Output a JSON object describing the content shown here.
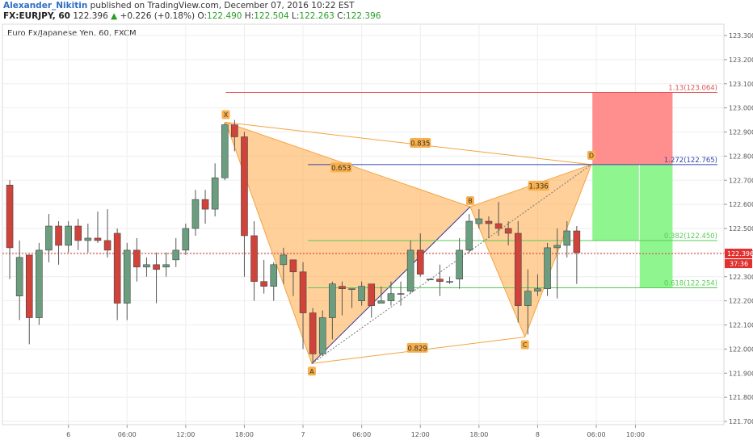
{
  "header": {
    "author": "Alexander_Nikitin",
    "published": "published on TradingView.com, December 07, 2016 10:22 EST",
    "symbol": "FX:EURJPY, 60",
    "last": "122.396",
    "arrow": "▲",
    "change": "+0.226 (+0.18%)",
    "o_label": "O:",
    "o_val": "122.490",
    "h_label": "H:",
    "h_val": "122.504",
    "l_label": "L:",
    "l_val": "122.263",
    "c_label": "C:",
    "c_val": "122.396"
  },
  "chart_data": {
    "type": "candlestick",
    "title": "Euro Fx/Japanese Yen, 60, FXCM",
    "ylim": [
      121.65,
      123.35
    ],
    "y_ticks": [
      123.3,
      123.2,
      123.1,
      123.0,
      122.9,
      122.8,
      122.7,
      122.6,
      122.5,
      122.4,
      122.3,
      122.2,
      122.1,
      122.0,
      121.9,
      121.8,
      121.7
    ],
    "x_ticks": [
      {
        "label": "6",
        "bar": 6.5
      },
      {
        "label": "06:00",
        "bar": 12.5
      },
      {
        "label": "12:00",
        "bar": 18.5
      },
      {
        "label": "18:00",
        "bar": 24.5
      },
      {
        "label": "7",
        "bar": 30.5
      },
      {
        "label": "06:00",
        "bar": 36.5
      },
      {
        "label": "12:00",
        "bar": 42.5
      },
      {
        "label": "18:00",
        "bar": 48.5
      },
      {
        "label": "8",
        "bar": 54.5
      },
      {
        "label": "06:00",
        "bar": 60.5
      },
      {
        "label": "10:00",
        "bar": 64.5
      }
    ],
    "total_bars": 66,
    "up_color": "#6a9e7f",
    "down_color": "#d0433a",
    "candles": [
      [
        122.68,
        122.42,
        122.7,
        122.29
      ],
      [
        122.22,
        122.38,
        122.45,
        122.12
      ],
      [
        122.39,
        122.13,
        122.39,
        122.02
      ],
      [
        122.13,
        122.41,
        122.44,
        122.1
      ],
      [
        122.41,
        122.51,
        122.56,
        122.36
      ],
      [
        122.51,
        122.43,
        122.53,
        122.35
      ],
      [
        122.43,
        122.51,
        122.53,
        122.4
      ],
      [
        122.51,
        122.45,
        122.54,
        122.41
      ],
      [
        122.45,
        122.46,
        122.52,
        122.4
      ],
      [
        122.46,
        122.45,
        122.57,
        122.44
      ],
      [
        122.45,
        122.41,
        122.58,
        122.38
      ],
      [
        122.48,
        122.19,
        122.5,
        122.12
      ],
      [
        122.19,
        122.41,
        122.44,
        122.12
      ],
      [
        122.41,
        122.34,
        122.46,
        122.28
      ],
      [
        122.34,
        122.35,
        122.38,
        122.3
      ],
      [
        122.35,
        122.33,
        122.4,
        122.19
      ],
      [
        122.34,
        122.35,
        122.4,
        122.3
      ],
      [
        122.37,
        122.41,
        122.46,
        122.34
      ],
      [
        122.41,
        122.5,
        122.52,
        122.39
      ],
      [
        122.5,
        122.62,
        122.66,
        122.47
      ],
      [
        122.62,
        122.58,
        122.66,
        122.52
      ],
      [
        122.58,
        122.71,
        122.77,
        122.55
      ],
      [
        122.71,
        122.93,
        122.94,
        122.7
      ],
      [
        122.93,
        122.88,
        122.95,
        122.82
      ],
      [
        122.88,
        122.47,
        122.9,
        122.3
      ],
      [
        122.47,
        122.28,
        122.53,
        122.2
      ],
      [
        122.28,
        122.26,
        122.37,
        122.23
      ],
      [
        122.26,
        122.35,
        122.36,
        122.2
      ],
      [
        122.35,
        122.39,
        122.42,
        122.27
      ],
      [
        122.37,
        122.32,
        122.37,
        122.22
      ],
      [
        122.32,
        122.15,
        122.36,
        122.0
      ],
      [
        122.15,
        121.98,
        122.17,
        121.94
      ],
      [
        121.98,
        122.13,
        122.16,
        121.97
      ],
      [
        122.13,
        122.27,
        122.28,
        122.04
      ],
      [
        122.26,
        122.25,
        122.28,
        122.14
      ],
      [
        122.25,
        122.25,
        122.25,
        122.17
      ],
      [
        122.2,
        122.26,
        122.28,
        122.18
      ],
      [
        122.27,
        122.18,
        122.27,
        122.13
      ],
      [
        122.19,
        122.2,
        122.26,
        122.2
      ],
      [
        122.2,
        122.23,
        122.28,
        122.18
      ],
      [
        122.23,
        122.23,
        122.28,
        122.18
      ],
      [
        122.24,
        122.41,
        122.45,
        122.23
      ],
      [
        122.41,
        122.31,
        122.48,
        122.3
      ],
      [
        122.29,
        122.29,
        122.29,
        122.29
      ],
      [
        122.29,
        122.28,
        122.35,
        122.22
      ],
      [
        122.28,
        122.28,
        122.3,
        122.27
      ],
      [
        122.29,
        122.41,
        122.46,
        122.25
      ],
      [
        122.41,
        122.53,
        122.56,
        122.4
      ],
      [
        122.52,
        122.54,
        122.58,
        122.5
      ],
      [
        122.53,
        122.52,
        122.55,
        122.46
      ],
      [
        122.52,
        122.5,
        122.61,
        122.47
      ],
      [
        122.5,
        122.48,
        122.53,
        122.43
      ],
      [
        122.48,
        122.18,
        122.53,
        122.11
      ],
      [
        122.18,
        122.24,
        122.33,
        122.06
      ],
      [
        122.24,
        122.25,
        122.31,
        122.22
      ],
      [
        122.25,
        122.42,
        122.44,
        122.22
      ],
      [
        122.42,
        122.43,
        122.5,
        122.21
      ],
      [
        122.43,
        122.49,
        122.53,
        122.38
      ],
      [
        122.49,
        122.4,
        122.51,
        122.27
      ]
    ],
    "pattern_points": {
      "X": {
        "bar": 22.6,
        "price": 122.94
      },
      "A": {
        "bar": 31.4,
        "price": 121.94
      },
      "B": {
        "bar": 47.6,
        "price": 122.59
      },
      "C": {
        "bar": 53.2,
        "price": 122.05
      },
      "D": {
        "bar": 60.0,
        "price": 122.765
      }
    },
    "point_labels": [
      "X",
      "A",
      "B",
      "C",
      "D"
    ],
    "ratios": [
      {
        "label": "0.835",
        "bar": 42.5,
        "price": 122.855
      },
      {
        "label": "0.653",
        "bar": 34.4,
        "price": 122.753
      },
      {
        "label": "1.336",
        "bar": 54.6,
        "price": 122.677
      },
      {
        "label": "0.829",
        "bar": 42.2,
        "price": 122.005
      }
    ],
    "levels": [
      {
        "label": "1.13(123.064)",
        "price": 123.064,
        "start_bar": 22.6,
        "color": "#e05555"
      },
      {
        "label": "1.272(122.765)",
        "price": 122.765,
        "start_bar": 31.0,
        "color": "#3344aa"
      },
      {
        "label": "0.382(122.450)",
        "price": 122.45,
        "start_bar": 31.0,
        "color": "#55cc55"
      },
      {
        "label": "0.618(122.254)",
        "price": 122.254,
        "start_bar": 31.0,
        "color": "#55cc55"
      }
    ],
    "stop_zone": {
      "bar_start": 60.1,
      "bar_end": 68.3,
      "price_low": 122.765,
      "price_high": 123.064
    },
    "target_zone_1": {
      "bar_start": 60.1,
      "bar_end": 68.3,
      "price_low": 122.45,
      "price_high": 122.765
    },
    "target_zone_2": {
      "bar_start": 64.9,
      "bar_end": 68.3,
      "price_low": 122.254,
      "price_high": 122.45
    },
    "current_price": 122.396,
    "current_price_label": "122.396",
    "countdown_label": "37:36"
  }
}
